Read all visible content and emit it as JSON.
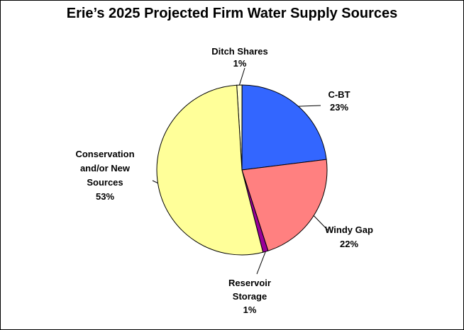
{
  "chart_data": {
    "type": "pie",
    "title": "Erie’s 2025 Projected Firm Water Supply Sources",
    "slices": [
      {
        "label_lines": [
          "Ditch Shares"
        ],
        "value_label": "1%",
        "value": 1,
        "color": "#ffffcc"
      },
      {
        "label_lines": [
          "C-BT"
        ],
        "value_label": "23%",
        "value": 23,
        "color": "#3366ff"
      },
      {
        "label_lines": [
          "Windy Gap"
        ],
        "value_label": "22%",
        "value": 22,
        "color": "#ff8080"
      },
      {
        "label_lines": [
          "Reservoir",
          "Storage"
        ],
        "value_label": "1%",
        "value": 1,
        "color": "#990099"
      },
      {
        "label_lines": [
          "Conservation",
          "and/or New",
          "Sources"
        ],
        "value_label": "53%",
        "value": 53,
        "color": "#ffff99"
      }
    ]
  }
}
